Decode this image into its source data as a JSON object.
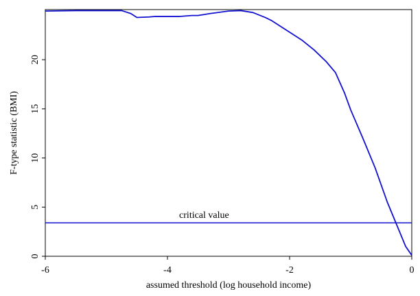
{
  "chart_data": {
    "type": "line",
    "xlabel": "assumed threshold (log household income)",
    "ylabel": "F-type statistic (BMI)",
    "x": [
      -6.0,
      -5.5,
      -5.0,
      -4.75,
      -4.6,
      -4.5,
      -4.3,
      -4.2,
      -4.0,
      -3.8,
      -3.6,
      -3.5,
      -3.3,
      -3.0,
      -2.8,
      -2.6,
      -2.4,
      -2.3,
      -2.2,
      -2.0,
      -1.8,
      -1.6,
      -1.4,
      -1.25,
      -1.1,
      -1.0,
      -0.8,
      -0.6,
      -0.4,
      -0.2,
      -0.1,
      0.0
    ],
    "series": [
      {
        "color": "#1010d0",
        "values": [
          24.95,
          25.0,
          25.0,
          25.0,
          24.7,
          24.3,
          24.35,
          24.4,
          24.4,
          24.4,
          24.5,
          24.5,
          24.7,
          24.95,
          25.0,
          24.8,
          24.3,
          24.0,
          23.6,
          22.8,
          22.0,
          21.0,
          19.8,
          18.7,
          16.6,
          14.9,
          12.0,
          9.0,
          5.5,
          2.5,
          1.0,
          0.1
        ]
      }
    ],
    "hline": {
      "value": 3.4,
      "label": "critical value",
      "color": "#1010d0"
    },
    "xlim": [
      -6,
      0
    ],
    "xticks": [
      -6,
      -4,
      -2,
      0
    ],
    "ylim": [
      0,
      25.1
    ],
    "yticks": [
      0,
      5,
      10,
      15,
      20
    ]
  }
}
